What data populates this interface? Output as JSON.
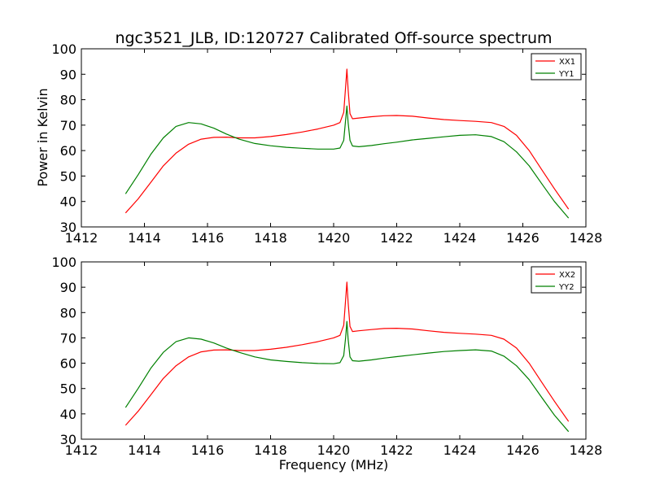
{
  "figure": {
    "title": "ngc3521_JLB, ID:120727 Calibrated Off-source spectrum",
    "ylabel": "Power in Kelvin",
    "xlabel": "Frequency (MHz)"
  },
  "colors": {
    "red": "#ff0000",
    "green": "#008000",
    "axes": "#000000"
  },
  "chart_data": [
    {
      "type": "line",
      "xlim": [
        1412,
        1428
      ],
      "ylim": [
        30,
        100
      ],
      "xticks": [
        1412,
        1414,
        1416,
        1418,
        1420,
        1422,
        1424,
        1426,
        1428
      ],
      "yticks": [
        30,
        40,
        50,
        60,
        70,
        80,
        90,
        100
      ],
      "ylabel": "Power in Kelvin",
      "xlabel": "",
      "legend": "top-right",
      "grid": false,
      "series": [
        {
          "name": "XX1",
          "color": "#ff0000",
          "x": [
            1413.4,
            1413.8,
            1414.2,
            1414.6,
            1415.0,
            1415.4,
            1415.8,
            1416.2,
            1416.6,
            1417.0,
            1417.5,
            1418.0,
            1418.5,
            1419.0,
            1419.5,
            1420.0,
            1420.2,
            1420.32,
            1420.38,
            1420.42,
            1420.46,
            1420.52,
            1420.6,
            1420.8,
            1421.2,
            1421.6,
            1422.0,
            1422.5,
            1423.0,
            1423.5,
            1424.0,
            1424.5,
            1425.0,
            1425.4,
            1425.8,
            1426.2,
            1426.6,
            1427.0,
            1427.45
          ],
          "y": [
            35.5,
            41.0,
            47.5,
            54.0,
            59.0,
            62.5,
            64.5,
            65.2,
            65.3,
            65.0,
            65.0,
            65.5,
            66.3,
            67.3,
            68.5,
            70.0,
            71.0,
            75.0,
            85.0,
            92.0,
            84.0,
            74.5,
            72.5,
            72.8,
            73.3,
            73.7,
            73.8,
            73.5,
            72.8,
            72.2,
            71.8,
            71.5,
            71.0,
            69.5,
            66.0,
            60.0,
            52.5,
            45.0,
            37.0
          ]
        },
        {
          "name": "YY1",
          "color": "#008000",
          "x": [
            1413.4,
            1413.8,
            1414.2,
            1414.6,
            1415.0,
            1415.4,
            1415.8,
            1416.2,
            1416.6,
            1417.0,
            1417.5,
            1418.0,
            1418.5,
            1419.0,
            1419.5,
            1420.0,
            1420.2,
            1420.32,
            1420.38,
            1420.42,
            1420.46,
            1420.52,
            1420.6,
            1420.8,
            1421.2,
            1421.6,
            1422.0,
            1422.5,
            1423.0,
            1423.5,
            1424.0,
            1424.5,
            1425.0,
            1425.4,
            1425.8,
            1426.2,
            1426.6,
            1427.0,
            1427.45
          ],
          "y": [
            43.0,
            50.5,
            58.5,
            65.0,
            69.5,
            71.0,
            70.5,
            68.8,
            66.5,
            64.5,
            62.8,
            61.9,
            61.3,
            60.9,
            60.6,
            60.6,
            61.0,
            64.0,
            72.0,
            77.5,
            71.0,
            64.0,
            61.8,
            61.5,
            62.0,
            62.7,
            63.3,
            64.2,
            64.8,
            65.4,
            66.0,
            66.2,
            65.5,
            63.5,
            59.5,
            54.0,
            47.0,
            40.0,
            33.5
          ]
        }
      ]
    },
    {
      "type": "line",
      "xlim": [
        1412,
        1428
      ],
      "ylim": [
        30,
        100
      ],
      "xticks": [
        1412,
        1414,
        1416,
        1418,
        1420,
        1422,
        1424,
        1426,
        1428
      ],
      "yticks": [
        30,
        40,
        50,
        60,
        70,
        80,
        90,
        100
      ],
      "ylabel": "",
      "xlabel": "Frequency (MHz)",
      "legend": "top-right",
      "grid": false,
      "series": [
        {
          "name": "XX2",
          "color": "#ff0000",
          "x": [
            1413.4,
            1413.8,
            1414.2,
            1414.6,
            1415.0,
            1415.4,
            1415.8,
            1416.2,
            1416.6,
            1417.0,
            1417.5,
            1418.0,
            1418.5,
            1419.0,
            1419.5,
            1420.0,
            1420.2,
            1420.32,
            1420.38,
            1420.42,
            1420.46,
            1420.52,
            1420.6,
            1420.8,
            1421.2,
            1421.6,
            1422.0,
            1422.5,
            1423.0,
            1423.5,
            1424.0,
            1424.5,
            1425.0,
            1425.4,
            1425.8,
            1426.2,
            1426.6,
            1427.0,
            1427.45
          ],
          "y": [
            35.5,
            41.0,
            47.5,
            54.0,
            59.0,
            62.5,
            64.5,
            65.2,
            65.3,
            65.0,
            65.0,
            65.5,
            66.3,
            67.3,
            68.5,
            70.0,
            71.0,
            75.0,
            85.0,
            92.0,
            84.0,
            74.5,
            72.5,
            72.8,
            73.3,
            73.7,
            73.8,
            73.5,
            72.8,
            72.2,
            71.8,
            71.5,
            71.0,
            69.5,
            66.0,
            60.0,
            52.5,
            45.0,
            37.0
          ]
        },
        {
          "name": "YY2",
          "color": "#008000",
          "x": [
            1413.4,
            1413.8,
            1414.2,
            1414.6,
            1415.0,
            1415.4,
            1415.8,
            1416.2,
            1416.6,
            1417.0,
            1417.5,
            1418.0,
            1418.5,
            1419.0,
            1419.5,
            1420.0,
            1420.2,
            1420.32,
            1420.38,
            1420.42,
            1420.46,
            1420.52,
            1420.6,
            1420.8,
            1421.2,
            1421.6,
            1422.0,
            1422.5,
            1423.0,
            1423.5,
            1424.0,
            1424.5,
            1425.0,
            1425.4,
            1425.8,
            1426.2,
            1426.6,
            1427.0,
            1427.45
          ],
          "y": [
            42.5,
            50.0,
            58.0,
            64.3,
            68.5,
            70.0,
            69.5,
            68.0,
            66.0,
            64.3,
            62.5,
            61.3,
            60.7,
            60.2,
            59.9,
            59.8,
            60.2,
            63.0,
            70.0,
            76.5,
            69.5,
            62.5,
            61.0,
            60.8,
            61.3,
            62.0,
            62.6,
            63.3,
            64.0,
            64.6,
            65.0,
            65.3,
            64.8,
            62.8,
            59.0,
            53.5,
            46.5,
            39.5,
            33.0
          ]
        }
      ]
    }
  ]
}
